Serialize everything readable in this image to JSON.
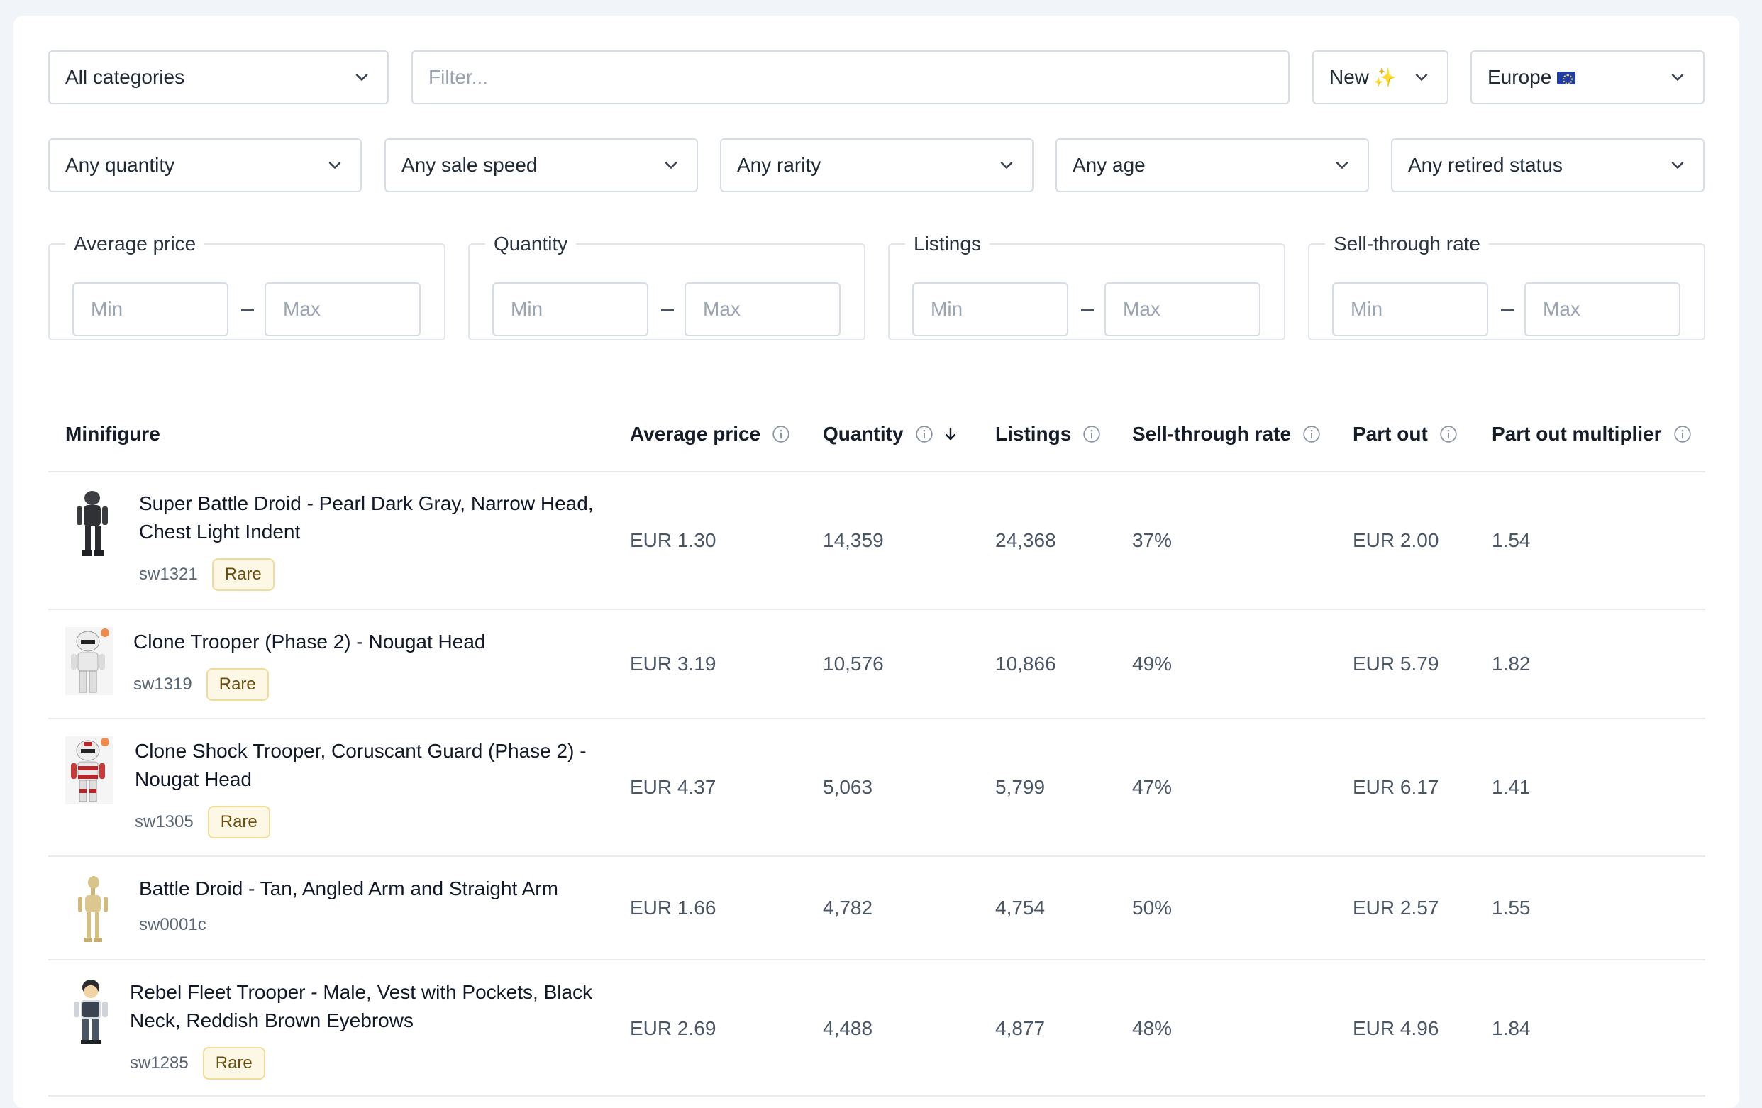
{
  "filters": {
    "category": "All categories",
    "search_placeholder": "Filter...",
    "condition": "New",
    "region": "Europe",
    "quantity": "Any quantity",
    "sale_speed": "Any sale speed",
    "rarity": "Any rarity",
    "age": "Any age",
    "retired_status": "Any retired status"
  },
  "ranges": [
    {
      "label": "Average price",
      "min_placeholder": "Min",
      "max_placeholder": "Max"
    },
    {
      "label": "Quantity",
      "min_placeholder": "Min",
      "max_placeholder": "Max"
    },
    {
      "label": "Listings",
      "min_placeholder": "Min",
      "max_placeholder": "Max"
    },
    {
      "label": "Sell-through rate",
      "min_placeholder": "Min",
      "max_placeholder": "Max"
    }
  ],
  "table": {
    "columns": [
      "Minifigure",
      "Average price",
      "Quantity",
      "Listings",
      "Sell-through rate",
      "Part out",
      "Part out multiplier"
    ],
    "sorted_column": "Quantity",
    "sort_direction": "descending",
    "rows": [
      {
        "name": "Super Battle Droid - Pearl Dark Gray, Narrow Head, Chest Light Indent",
        "sku": "sw1321",
        "badge": "Rare",
        "avg_price": "EUR 1.30",
        "quantity": "14,359",
        "listings": "24,368",
        "sell_through": "37%",
        "part_out": "EUR 2.00",
        "multiplier": "1.54"
      },
      {
        "name": "Clone Trooper (Phase 2) - Nougat Head",
        "sku": "sw1319",
        "badge": "Rare",
        "avg_price": "EUR 3.19",
        "quantity": "10,576",
        "listings": "10,866",
        "sell_through": "49%",
        "part_out": "EUR 5.79",
        "multiplier": "1.82"
      },
      {
        "name": "Clone Shock Trooper, Coruscant Guard (Phase 2) - Nougat Head",
        "sku": "sw1305",
        "badge": "Rare",
        "avg_price": "EUR 4.37",
        "quantity": "5,063",
        "listings": "5,799",
        "sell_through": "47%",
        "part_out": "EUR 6.17",
        "multiplier": "1.41"
      },
      {
        "name": "Battle Droid - Tan, Angled Arm and Straight Arm",
        "sku": "sw0001c",
        "badge": "",
        "avg_price": "EUR 1.66",
        "quantity": "4,782",
        "listings": "4,754",
        "sell_through": "50%",
        "part_out": "EUR 2.57",
        "multiplier": "1.55"
      },
      {
        "name": "Rebel Fleet Trooper - Male, Vest with Pockets, Black Neck, Reddish Brown Eyebrows",
        "sku": "sw1285",
        "badge": "Rare",
        "avg_price": "EUR 2.69",
        "quantity": "4,488",
        "listings": "4,877",
        "sell_through": "48%",
        "part_out": "EUR 4.96",
        "multiplier": "1.84"
      }
    ]
  }
}
